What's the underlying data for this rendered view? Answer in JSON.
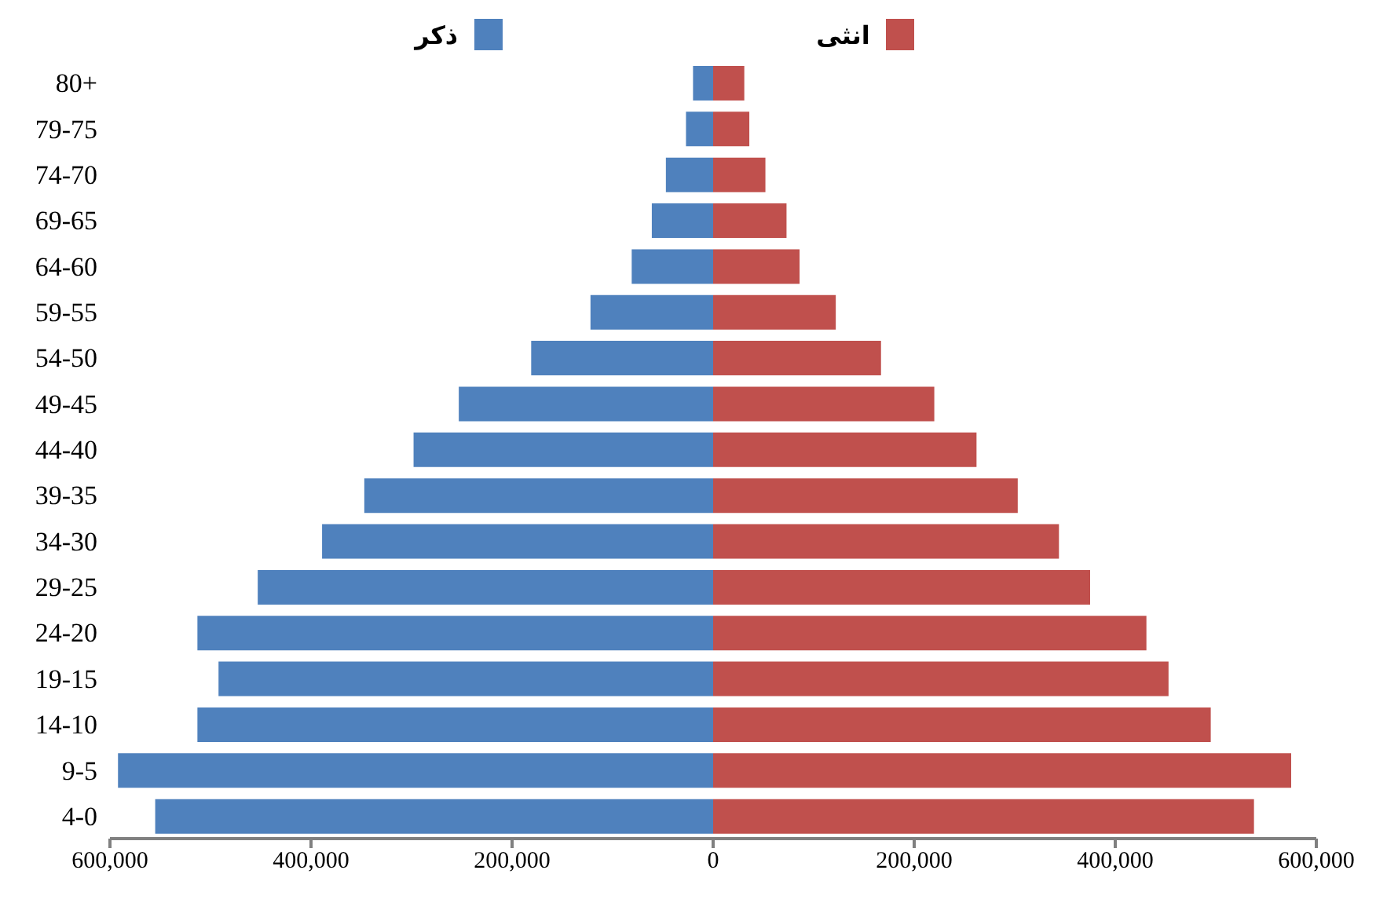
{
  "chart_data": {
    "type": "bar",
    "orientation": "horizontal",
    "stacked": true,
    "categories": [
      "80+",
      "79-75",
      "74-70",
      "69-65",
      "64-60",
      "59-55",
      "54-50",
      "49-45",
      "44-40",
      "39-35",
      "34-30",
      "29-25",
      "24-20",
      "19-15",
      "14-10",
      "9-5",
      "4-0"
    ],
    "series": [
      {
        "name": "ذكر",
        "color": "#4f81bd",
        "values": [
          -20000,
          -27000,
          -47000,
          -61000,
          -81000,
          -122000,
          -181000,
          -253000,
          -298000,
          -347000,
          -389000,
          -453000,
          -513000,
          -492000,
          -513000,
          -592000,
          -555000
        ]
      },
      {
        "name": "انثى",
        "color": "#c0504d",
        "values": [
          31000,
          36000,
          52000,
          73000,
          86000,
          122000,
          167000,
          220000,
          262000,
          303000,
          344000,
          375000,
          431000,
          453000,
          495000,
          575000,
          538000
        ]
      }
    ],
    "xlim": [
      -600000,
      600000
    ],
    "xticks": [
      {
        "value": -600000,
        "label": "600,000"
      },
      {
        "value": -400000,
        "label": "400,000"
      },
      {
        "value": -200000,
        "label": "200,000"
      },
      0,
      {
        "value": 200000,
        "label": "200,000"
      },
      {
        "value": 400000,
        "label": "400,000"
      },
      {
        "value": 600000,
        "label": "600,000"
      }
    ],
    "legend": "top",
    "grid": false
  }
}
